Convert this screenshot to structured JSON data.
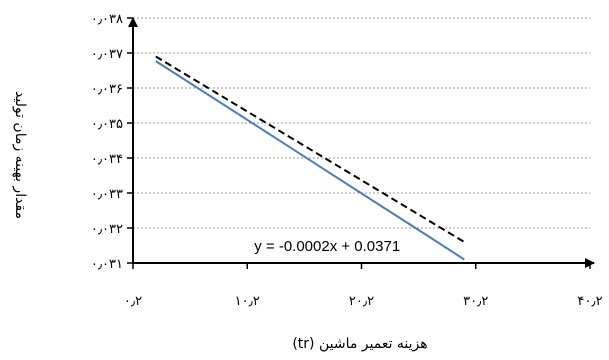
{
  "chart_data": {
    "type": "line",
    "xlabel": "هزینه تعمیر ماشین (tr)",
    "ylabel": "مقدار بهینه زمان تولید",
    "xlim": [
      0.2,
      40.2
    ],
    "ylim": [
      0.031,
      0.038
    ],
    "x_ticks": [
      0.2,
      10.2,
      20.2,
      30.2,
      40.2
    ],
    "x_tick_labels": [
      "۰٫۲",
      "۱۰٫۲",
      "۲۰٫۲",
      "۳۰٫۲",
      "۴۰٫۲"
    ],
    "y_ticks": [
      0.031,
      0.032,
      0.033,
      0.034,
      0.035,
      0.036,
      0.037,
      0.038
    ],
    "y_tick_labels": [
      "۰٫۰۳۱",
      "۰٫۰۳۲",
      "۰٫۰۳۳",
      "۰٫۰۳۴",
      "۰٫۰۳۵",
      "۰٫۰۳۶",
      "۰٫۰۳۷",
      "۰٫۰۳۸"
    ],
    "grid": "horizontal-dashed",
    "series": [
      {
        "style": "solid",
        "color": "#4a7ebb",
        "x": [
          2.2,
          5.2,
          8.2,
          11.2,
          14.2,
          17.2,
          20.2,
          23.2,
          26.2,
          29.2
        ],
        "y": [
          0.03677,
          0.03614,
          0.03551,
          0.03488,
          0.03425,
          0.03362,
          0.03299,
          0.03236,
          0.03173,
          0.0311
        ]
      },
      {
        "style": "dashed",
        "color": "#000000",
        "role": "trendline",
        "x": [
          2.2,
          29.2
        ],
        "y": [
          0.0369,
          0.0316
        ]
      }
    ],
    "annotations": [
      {
        "text": "y = -0.0002x + 0.0371",
        "x": 17.2,
        "y": 0.03135
      }
    ]
  }
}
